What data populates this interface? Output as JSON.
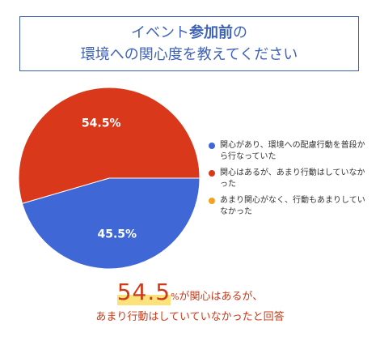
{
  "title": {
    "line1_pre": "イベント",
    "line1_bold": "参加前",
    "line1_post": "の",
    "line2": "環境への関心度を教えてください"
  },
  "chart_data": {
    "type": "pie",
    "slices": [
      {
        "label": "関心があり、環境への配慮行動を普段から行なっていた",
        "value": 45.5,
        "color": "#3f67d6"
      },
      {
        "label": "関心はあるが、あまり行動はしていなかった",
        "value": 54.5,
        "color": "#d9391a"
      },
      {
        "label": "あまり関心がなく、行動もあまりしていなかった",
        "value": 0,
        "color": "#f4a21e"
      }
    ],
    "data_labels": [
      "45.5%",
      "54.5%"
    ],
    "legend_position": "right"
  },
  "legend": [
    {
      "label": "関心があり、環境への配慮行動を普段から行なっていた",
      "color": "#3f67d6"
    },
    {
      "label": "関心はあるが、あまり行動はしていなかった",
      "color": "#d9391a"
    },
    {
      "label": "あまり関心がなく、行動もあまりしていなかった",
      "color": "#f4a21e"
    }
  ],
  "caption": {
    "big_number": "54.5",
    "unit": "%",
    "line1_rest": "が関心はあるが、",
    "line2": "あまり行動はしていていなかったと回答"
  }
}
